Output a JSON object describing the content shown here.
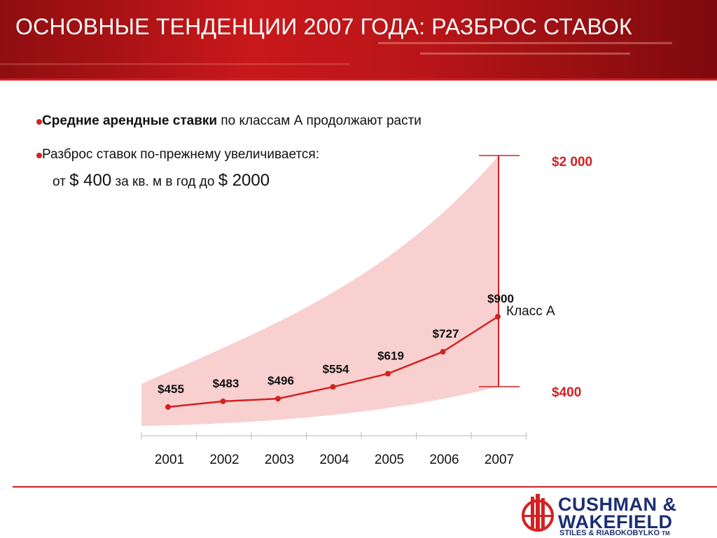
{
  "header": {
    "title": "ОСНОВНЫЕ ТЕНДЕНЦИИ 2007 ГОДА: РАЗБРОС СТАВОК"
  },
  "bullets": [
    {
      "bold": "Средние арендные ставки",
      "rest": " по классам А продолжают расти"
    },
    {
      "line1": "Разброс ставок по-прежнему увеличивается:",
      "l2_a": "от ",
      "l2_b": "$ 400",
      "l2_c": " за кв. м в год до ",
      "l2_d": "$ 2000"
    }
  ],
  "colors": {
    "accent": "#d42121",
    "band": "#f8d0d0",
    "brand": "#1c2f73"
  },
  "chart_data": {
    "type": "line",
    "categories": [
      "2001",
      "2002",
      "2003",
      "2004",
      "2005",
      "2006",
      "2007"
    ],
    "series": [
      {
        "name": "Класс А",
        "values": [
          455,
          483,
          496,
          554,
          619,
          727,
          900
        ],
        "labels": [
          "$455",
          "$483",
          "$496",
          "$554",
          "$619",
          "$727",
          "$900"
        ]
      }
    ],
    "range": {
      "max": 2000,
      "min": 400,
      "max_label": "$2 000",
      "min_label": "$400"
    },
    "band": "shaded spread of rates widening toward 2007"
  },
  "logo": {
    "line1": "CUSHMAN &",
    "line2": "WAKEFIELD",
    "line3": "STILES & RIABOKOBYLKO",
    "tm": "TM"
  }
}
